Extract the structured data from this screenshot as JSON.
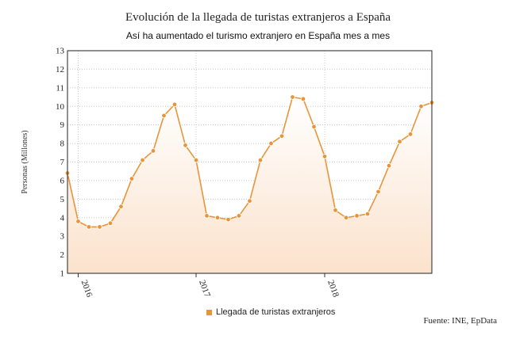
{
  "chart_data": {
    "type": "area",
    "title": "Evolución de la llegada de turistas extranjeros a España",
    "subtitle": "Así ha aumentado el turismo extranjero en España mes a mes",
    "ylabel": "Personas (Millones)",
    "xlabel": "",
    "ylim": [
      1,
      13
    ],
    "yticks": [
      1,
      2,
      3,
      4,
      5,
      6,
      7,
      8,
      9,
      10,
      11,
      12,
      13
    ],
    "xtick_labels": [
      "2016",
      "2017",
      "2018"
    ],
    "xtick_index": [
      1,
      12,
      24
    ],
    "grid": true,
    "legend_position": "bottom-center",
    "colors": {
      "line": "#e8953a",
      "fill_top": "#fbe2cc",
      "marker": "#e8953a",
      "grid": "#c8c8c8"
    },
    "series": [
      {
        "name": "Llegada de turistas extranjeros",
        "values": [
          6.4,
          3.8,
          3.5,
          3.5,
          3.7,
          4.6,
          6.1,
          7.1,
          7.6,
          9.5,
          10.1,
          7.9,
          7.1,
          4.1,
          4.0,
          3.9,
          4.1,
          4.9,
          7.1,
          8.0,
          8.4,
          10.5,
          10.4,
          8.9,
          7.3,
          4.4,
          4.0,
          4.1,
          4.2,
          5.4,
          6.8,
          8.1,
          8.5,
          10.0,
          10.2
        ]
      }
    ]
  },
  "source": "Fuente: INE, EpData"
}
